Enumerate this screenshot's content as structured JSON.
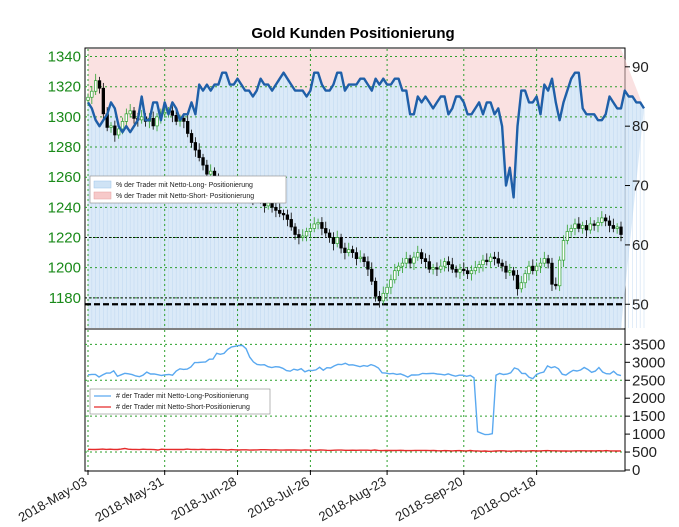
{
  "chart_data": [
    {
      "type": "candlestick",
      "title": "Gold Kunden Positionierung",
      "x_tick_labels": [
        "2018-May-03",
        "2018-May-31",
        "2018-Jun-28",
        "2018-Jul-26",
        "2018-Aug-23",
        "2018-Sep-20",
        "2018-Oct-18"
      ],
      "y_left": {
        "ticks": [
          1180,
          1200,
          1220,
          1240,
          1260,
          1280,
          1300,
          1320,
          1340
        ],
        "range": [
          1160,
          1345
        ]
      },
      "y_right": {
        "ticks": [
          50,
          60,
          70,
          80,
          90
        ],
        "range": [
          46,
          93
        ]
      },
      "hlines_left": [
        1180,
        1220
      ],
      "hline_right_dashed": 50,
      "grid": true,
      "legend": {
        "placement": "left",
        "entries": [
          "% der Trader mit Netto-Long- Positionierung",
          "% der Trader mit Netto-Short- Positionierung"
        ]
      },
      "colors": {
        "long": "#1f5fa8",
        "long_fill": "#cfe3f5",
        "short_fill": "#f6c9c9",
        "up_candle": "#2ca02c",
        "down_candle": "#000000"
      },
      "gold_close_approx": [
        1313,
        1317,
        1324,
        1319,
        1302,
        1293,
        1294,
        1288,
        1292,
        1297,
        1302,
        1304,
        1299,
        1298,
        1300,
        1297,
        1299,
        1294,
        1300,
        1302,
        1303,
        1304,
        1301,
        1297,
        1299,
        1297,
        1289,
        1283,
        1278,
        1273,
        1268,
        1262,
        1264,
        1259,
        1256,
        1254,
        1253,
        1252,
        1255,
        1251,
        1252,
        1249,
        1251,
        1246,
        1249,
        1246,
        1241,
        1243,
        1240,
        1238,
        1236,
        1235,
        1232,
        1227,
        1222,
        1220,
        1221,
        1224,
        1226,
        1229,
        1230,
        1226,
        1223,
        1220,
        1216,
        1220,
        1213,
        1210,
        1212,
        1210,
        1206,
        1207,
        1204,
        1199,
        1191,
        1181,
        1178,
        1183,
        1187,
        1192,
        1198,
        1201,
        1203,
        1206,
        1203,
        1207,
        1210,
        1206,
        1204,
        1199,
        1200,
        1199,
        1201,
        1204,
        1202,
        1199,
        1197,
        1199,
        1198,
        1196,
        1198,
        1200,
        1202,
        1205,
        1204,
        1207,
        1206,
        1203,
        1201,
        1197,
        1198,
        1195,
        1186,
        1190,
        1196,
        1201,
        1198,
        1201,
        1203,
        1206,
        1203,
        1189,
        1188,
        1205,
        1218,
        1224,
        1226,
        1229,
        1226,
        1228,
        1225,
        1229,
        1228,
        1230,
        1233,
        1231,
        1228,
        1226,
        1227,
        1222
      ],
      "pct_long_approx": [
        84,
        83,
        81,
        80,
        81,
        82,
        84,
        83,
        80,
        79,
        80,
        79,
        80,
        81,
        85,
        81,
        81,
        84,
        84,
        81,
        84,
        82,
        84,
        83,
        81,
        82,
        82,
        84,
        82,
        87,
        86,
        87,
        86,
        87,
        87,
        89,
        89,
        87,
        87,
        88,
        87,
        86,
        86,
        85,
        86,
        88,
        87,
        87,
        86,
        87,
        88,
        89,
        88,
        87,
        86,
        86,
        86,
        85,
        86,
        89,
        89,
        87,
        86,
        86,
        87,
        89,
        89,
        86,
        87,
        87,
        87,
        88,
        88,
        87,
        86,
        88,
        87,
        88,
        87,
        87,
        88,
        88,
        86,
        86,
        82,
        82,
        85,
        84,
        85,
        84,
        83,
        84,
        85,
        85,
        82,
        83,
        85,
        85,
        84,
        82,
        82,
        83,
        84,
        82,
        84,
        84,
        82,
        83,
        80,
        70,
        73,
        68,
        80,
        86,
        86,
        84,
        84,
        85,
        82,
        87,
        86,
        88,
        84,
        81,
        84,
        86,
        88,
        89,
        89,
        83,
        82,
        82,
        82,
        81,
        81,
        82,
        85,
        84,
        83,
        83,
        86,
        85,
        85,
        84,
        84,
        83
      ]
    },
    {
      "type": "line",
      "y_right": {
        "ticks": [
          0,
          500,
          1000,
          1500,
          2000,
          2500,
          3000,
          3500
        ],
        "range": [
          0,
          3900
        ]
      },
      "grid": true,
      "legend": {
        "placement": "left",
        "entries": [
          "# der Trader mit Netto-Long-Positionierung",
          "# der Trader mit Netto-Short-Positionierung"
        ]
      },
      "colors": {
        "long": "#5aa9f0",
        "short": "#e52b2b"
      },
      "long_count_approx": [
        2649,
        2664,
        2663,
        2592,
        2650,
        2699,
        2700,
        2763,
        2610,
        2651,
        2693,
        2679,
        2658,
        2618,
        2600,
        2643,
        2726,
        2675,
        2675,
        2655,
        2633,
        2651,
        2659,
        2640,
        2757,
        2818,
        2803,
        2810,
        2869,
        2993,
        2995,
        3002,
        3012,
        3087,
        3089,
        3250,
        3223,
        3249,
        3359,
        3426,
        3446,
        3472,
        3468,
        3379,
        3144,
        3012,
        2942,
        2927,
        2934,
        2877,
        2854,
        2878,
        2869,
        2834,
        2769,
        2753,
        2807,
        2782,
        2823,
        2736,
        2778,
        2769,
        2789,
        2861,
        2780,
        2849,
        2842,
        2900,
        2944,
        2935,
        2972,
        2924,
        2931,
        2906,
        2879,
        2908,
        2889,
        2935,
        2900,
        2841,
        2707,
        2699,
        2679,
        2691,
        2662,
        2676,
        2638,
        2587,
        2647,
        2647,
        2652,
        2692,
        2683,
        2688,
        2695,
        2674,
        2667,
        2648,
        2678,
        2641,
        2614,
        2640,
        2640,
        2610,
        2634,
        2569,
        1070,
        1025,
        985,
        991,
        1010,
        2640,
        2690,
        2660,
        2672,
        2708,
        2844,
        2809,
        2691,
        2688,
        2581,
        2542,
        2659,
        2703,
        2730,
        2899,
        2850,
        2878,
        2818,
        2668,
        2643,
        2716,
        2777,
        2758,
        2787,
        2854,
        2799,
        2721,
        2755,
        2854,
        2731,
        2683,
        2676,
        2749,
        2658,
        2629
      ],
      "short_count_approx": [
        578,
        574,
        571,
        578,
        583,
        574,
        580,
        575,
        572,
        583,
        599,
        579,
        573,
        574,
        568,
        579,
        573,
        574,
        569,
        557,
        580,
        574,
        573,
        574,
        572,
        574,
        570,
        581,
        573,
        570,
        567,
        576,
        571,
        567,
        575,
        572,
        568,
        566,
        558,
        567,
        563,
        557,
        563,
        563,
        554,
        558,
        560,
        566,
        565,
        562,
        558,
        563,
        553,
        553,
        557,
        556,
        557,
        555,
        551,
        556,
        553,
        551,
        550,
        557,
        555,
        548,
        547,
        551,
        553,
        555,
        548,
        549,
        552,
        548,
        552,
        552,
        551,
        547,
        557,
        546,
        541,
        544,
        546,
        543,
        545,
        548,
        544,
        541,
        541,
        546,
        546,
        546,
        547,
        541,
        543,
        539,
        535,
        540,
        538,
        533,
        537,
        540,
        536,
        533,
        542,
        533,
        531,
        523,
        528,
        520,
        524,
        528,
        536,
        534,
        527,
        524,
        533,
        536,
        530,
        526,
        532,
        537,
        530,
        531,
        538,
        540,
        535,
        536,
        531,
        529,
        530,
        527,
        532,
        535,
        534,
        534,
        531,
        534,
        533,
        537,
        531,
        540,
        533,
        533,
        530,
        531
      ]
    }
  ]
}
